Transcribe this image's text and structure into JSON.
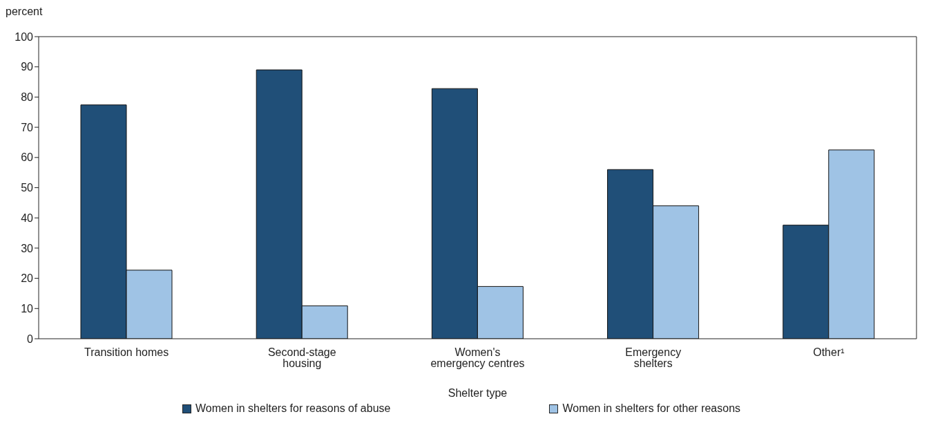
{
  "chart_data": {
    "type": "bar",
    "ylabel": "percent",
    "xlabel": "Shelter type",
    "categories": [
      "Transition homes",
      "Second-stage housing",
      "Women's emergency centres",
      "Emergency shelters",
      "Other¹"
    ],
    "series": [
      {
        "name": "Women in shelters for reasons of abuse",
        "color": "#204f78",
        "values": [
          77.4,
          89.0,
          82.8,
          56.0,
          37.6
        ]
      },
      {
        "name": "Women in shelters for other reasons",
        "color": "#9fc3e5",
        "values": [
          22.7,
          10.9,
          17.3,
          44.0,
          62.5
        ]
      }
    ],
    "ylim": [
      0,
      100
    ],
    "yticks": [
      0,
      10,
      20,
      30,
      40,
      50,
      60,
      70,
      80,
      90,
      100
    ],
    "grid": false,
    "legend": "bottom"
  }
}
